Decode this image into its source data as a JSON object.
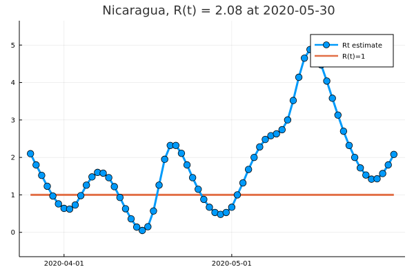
{
  "chart_data": {
    "type": "line",
    "title": "Nicaragua, R(t) = 2.08 at 2020-05-30",
    "xlabel": "",
    "ylabel": "",
    "x_start": "2020-03-26",
    "x_end": "2020-05-30",
    "xlim": [
      "2020-03-24",
      "2020-06-01"
    ],
    "ylim": [
      -0.65,
      5.65
    ],
    "xticks": [
      {
        "date": "2020-04-01",
        "label": "2020-04-01"
      },
      {
        "date": "2020-05-01",
        "label": "2020-05-01"
      }
    ],
    "yticks": [
      0,
      1,
      2,
      3,
      4,
      5
    ],
    "grid": true,
    "legend_position": "top-right",
    "series": [
      {
        "name": "Rt estimate",
        "color": "#009AFA",
        "marker": "circle",
        "values": [
          2.1,
          1.8,
          1.52,
          1.23,
          0.97,
          0.76,
          0.64,
          0.62,
          0.73,
          0.98,
          1.26,
          1.48,
          1.6,
          1.58,
          1.46,
          1.22,
          0.93,
          0.63,
          0.36,
          0.14,
          0.05,
          0.15,
          0.57,
          1.26,
          1.95,
          2.32,
          2.32,
          2.11,
          1.8,
          1.46,
          1.15,
          0.88,
          0.67,
          0.53,
          0.48,
          0.53,
          0.67,
          1.0,
          1.32,
          1.68,
          2.0,
          2.28,
          2.48,
          2.58,
          2.63,
          2.74,
          3.0,
          3.52,
          4.14,
          4.65,
          4.88,
          4.8,
          4.47,
          4.04,
          3.58,
          3.13,
          2.7,
          2.32,
          2.0,
          1.72,
          1.53,
          1.42,
          1.43,
          1.57,
          1.8,
          2.08
        ]
      },
      {
        "name": "R(t)=1",
        "color": "#E26F46",
        "marker": "none",
        "values": [
          1,
          1
        ]
      }
    ]
  }
}
